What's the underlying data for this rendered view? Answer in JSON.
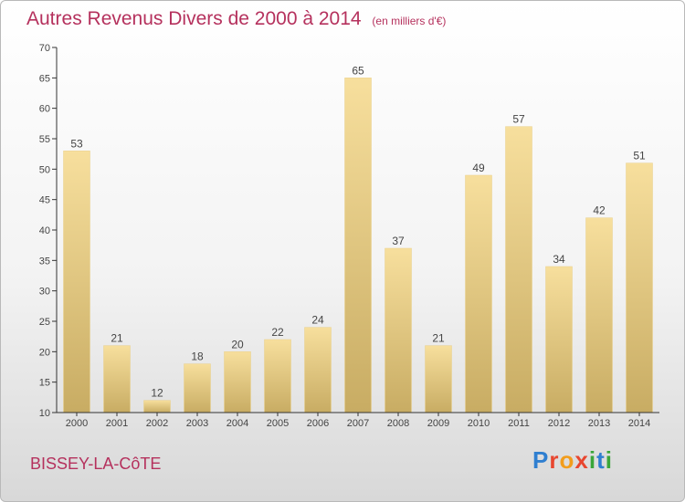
{
  "header": {
    "title": "Autres Revenus Divers de 2000 à 2014",
    "subtitle": "(en milliers d'€)"
  },
  "footer": {
    "location": "BISSEY-LA-CôTE",
    "logo": [
      "P",
      "r",
      "o",
      "x",
      "i",
      "t",
      "i"
    ]
  },
  "chart_data": {
    "type": "bar",
    "title": "Autres Revenus Divers de 2000 à 2014",
    "subtitle": "(en milliers d'€)",
    "xlabel": "",
    "ylabel": "",
    "categories": [
      "2000",
      "2001",
      "2002",
      "2003",
      "2004",
      "2005",
      "2006",
      "2007",
      "2008",
      "2009",
      "2010",
      "2011",
      "2012",
      "2013",
      "2014"
    ],
    "values": [
      53,
      21,
      12,
      18,
      20,
      22,
      24,
      65,
      37,
      21,
      49,
      57,
      34,
      42,
      51
    ],
    "ylim": [
      10,
      70
    ],
    "yticks": [
      10,
      15,
      20,
      25,
      30,
      35,
      40,
      45,
      50,
      55,
      60,
      65,
      70
    ],
    "grid": false,
    "legend": "none",
    "colors": {
      "bar_light": "#f7df9d",
      "bar_dark": "#c8ac63",
      "axis": "#333333",
      "title": "#b5315d"
    }
  }
}
